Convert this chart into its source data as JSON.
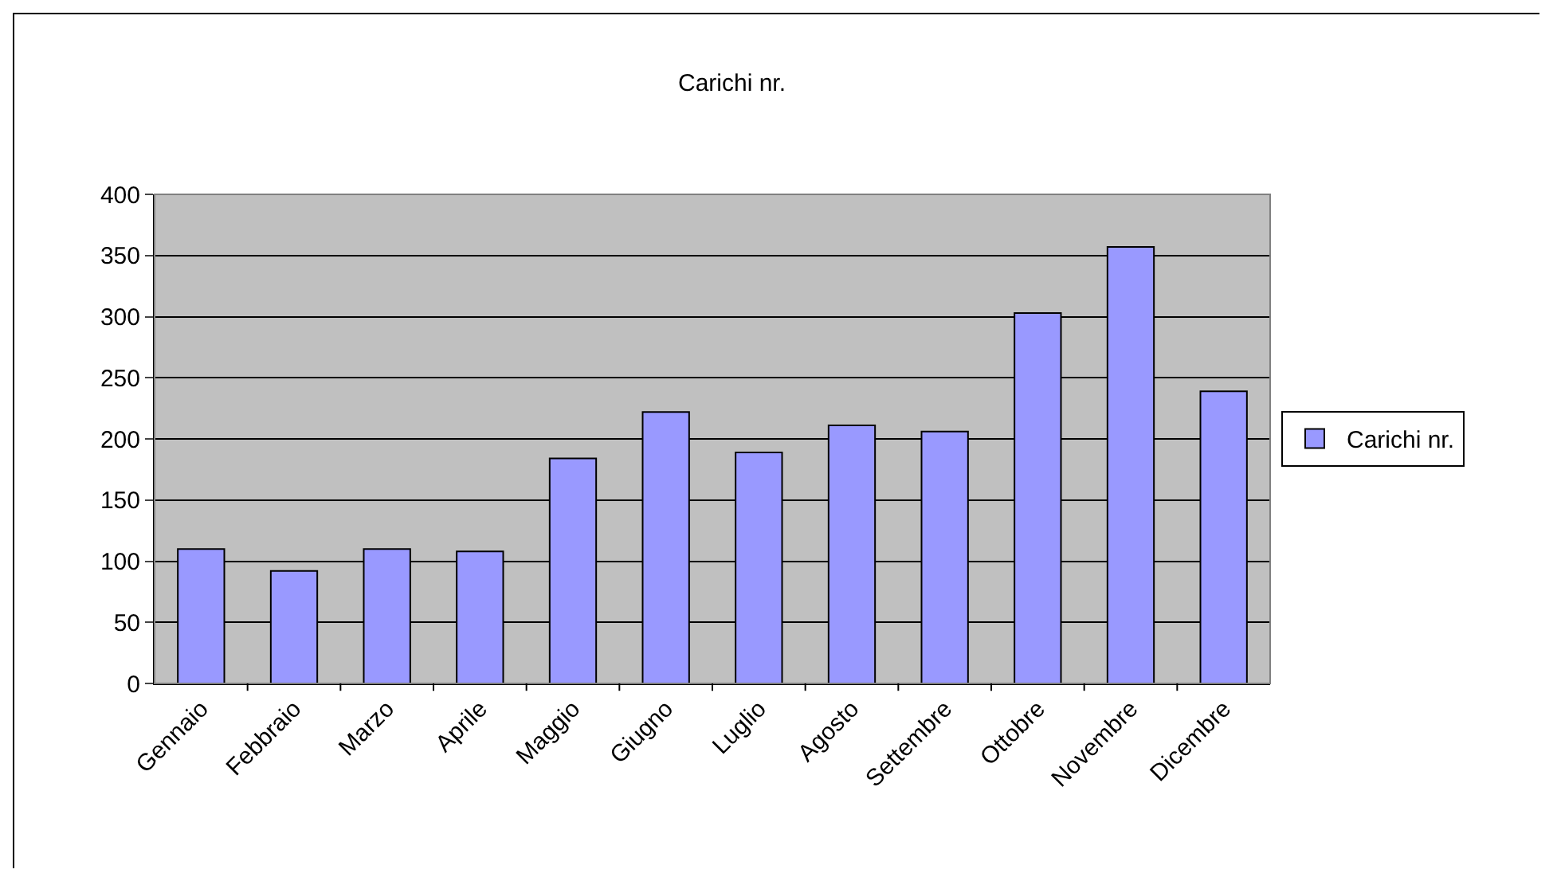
{
  "chart_data": {
    "type": "bar",
    "title": "Carichi nr.",
    "categories": [
      "Gennaio",
      "Febbraio",
      "Marzo",
      "Aprile",
      "Maggio",
      "Giugno",
      "Luglio",
      "Agosto",
      "Settembre",
      "Ottobre",
      "Novembre",
      "Dicembre"
    ],
    "series": [
      {
        "name": "Carichi nr.",
        "color": "#9999ff",
        "values": [
          110,
          92,
          110,
          108,
          184,
          222,
          189,
          211,
          206,
          303,
          357,
          239
        ]
      }
    ],
    "ylim": [
      0,
      400
    ],
    "yticks": [
      0,
      50,
      100,
      150,
      200,
      250,
      300,
      350,
      400
    ],
    "grid": "y",
    "legend": "right"
  }
}
